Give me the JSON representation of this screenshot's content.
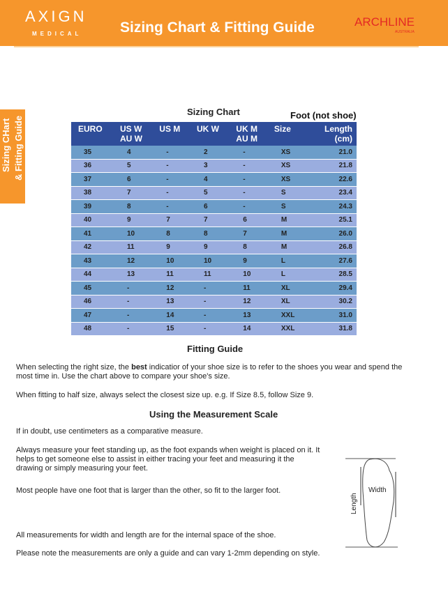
{
  "header": {
    "brand_left": "AXIGN",
    "brand_left_sub": "MEDICAL",
    "title": "Sizing Chart & Fitting Guide",
    "brand_right": "ARCHLINE",
    "brand_right_sub": "AUSTRALIA",
    "color": "#f6962c"
  },
  "side_tab": {
    "line1": "Sizing CHart",
    "line2": "& Fitting Guide"
  },
  "chart": {
    "title": "Sizing Chart",
    "note": "Foot (not shoe)",
    "headers": [
      [
        "EURO",
        ""
      ],
      [
        "US W",
        "AU W"
      ],
      [
        "US M",
        ""
      ],
      [
        "UK W",
        ""
      ],
      [
        "UK M",
        "AU M"
      ],
      [
        "Size",
        ""
      ],
      [
        "Length",
        "(cm)"
      ]
    ],
    "rows": [
      [
        "35",
        "4",
        "-",
        "2",
        "-",
        "XS",
        "21.0"
      ],
      [
        "36",
        "5",
        "-",
        "3",
        "-",
        "XS",
        "21.8"
      ],
      [
        "37",
        "6",
        "-",
        "4",
        "-",
        "XS",
        "22.6"
      ],
      [
        "38",
        "7",
        "-",
        "5",
        "-",
        "S",
        "23.4"
      ],
      [
        "39",
        "8",
        "-",
        "6",
        "-",
        "S",
        "24.3"
      ],
      [
        "40",
        "9",
        "7",
        "7",
        "6",
        "M",
        "25.1"
      ],
      [
        "41",
        "10",
        "8",
        "8",
        "7",
        "M",
        "26.0"
      ],
      [
        "42",
        "11",
        "9",
        "9",
        "8",
        "M",
        "26.8"
      ],
      [
        "43",
        "12",
        "10",
        "10",
        "9",
        "L",
        "27.6"
      ],
      [
        "44",
        "13",
        "11",
        "11",
        "10",
        "L",
        "28.5"
      ],
      [
        "45",
        "-",
        "12",
        "-",
        "11",
        "XL",
        "29.4"
      ],
      [
        "46",
        "-",
        "13",
        "-",
        "12",
        "XL",
        "30.2"
      ],
      [
        "47",
        "-",
        "14",
        "-",
        "13",
        "XXL",
        "31.0"
      ],
      [
        "48",
        "-",
        "15",
        "-",
        "14",
        "XXL",
        "31.8"
      ]
    ]
  },
  "fitting": {
    "title": "Fitting Guide",
    "p1a": "When selecting the right size, the ",
    "p1b": "best",
    "p1c": " indicatior of your shoe size is to refer to the shoes you wear and spend the most time in. Use the chart above to compare your shoe's size.",
    "p2": "When fitting to half size, always select the closest size up. e.g. If Size 8.5, follow Size 9."
  },
  "measure": {
    "title": "Using the Measurement Scale",
    "p1": "If in doubt, use centimeters as a comparative measure.",
    "p2": "Always measure your feet standing up, as the foot expands when weight is placed on it. It helps to get someone else to assist in either tracing your feet and measuring it the drawing or simply measuring your feet.",
    "p3": "Most people have one foot that is larger than the other, so fit to the larger foot.",
    "p4": "All measurements for width and length are for the internal space of the shoe.",
    "p5": "Please note the measurements are only a guide and can vary 1-2mm depending on style.",
    "diagram_length": "Length",
    "diagram_width": "Width"
  }
}
